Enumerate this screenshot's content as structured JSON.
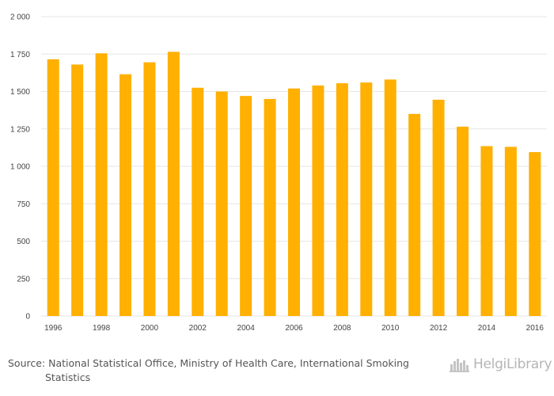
{
  "chart_data": {
    "type": "bar",
    "categories": [
      "1996",
      "1997",
      "1998",
      "1999",
      "2000",
      "2001",
      "2002",
      "2003",
      "2004",
      "2005",
      "2006",
      "2007",
      "2008",
      "2009",
      "2010",
      "2011",
      "2012",
      "2013",
      "2014",
      "2015",
      "2016"
    ],
    "values": [
      1715,
      1680,
      1755,
      1615,
      1695,
      1765,
      1525,
      1500,
      1470,
      1450,
      1520,
      1540,
      1555,
      1560,
      1580,
      1350,
      1445,
      1265,
      1135,
      1130,
      1095
    ],
    "x_tick_labels": [
      "1996",
      "",
      "1998",
      "",
      "2000",
      "",
      "2002",
      "",
      "2004",
      "",
      "2006",
      "",
      "2008",
      "",
      "2010",
      "",
      "2012",
      "",
      "2014",
      "",
      "2016"
    ],
    "y_ticks": [
      0,
      250,
      500,
      750,
      1000,
      1250,
      1500,
      1750,
      2000
    ],
    "y_tick_labels": [
      "0",
      "250",
      "500",
      "750",
      "1 000",
      "1 250",
      "1 500",
      "1 750",
      "2 000"
    ],
    "ylim": [
      0,
      2000
    ],
    "title": "",
    "xlabel": "",
    "ylabel": "",
    "grid": true,
    "bar_color": "#ffb000",
    "grid_color": "#e6e6e6"
  },
  "footer": {
    "source_line1": "Source: National Statistical Office, Ministry of Health Care, International Smoking",
    "source_line2": "Statistics",
    "logo_text": "HelgiLibrary",
    "logo_icon": "city-skyline-icon"
  }
}
